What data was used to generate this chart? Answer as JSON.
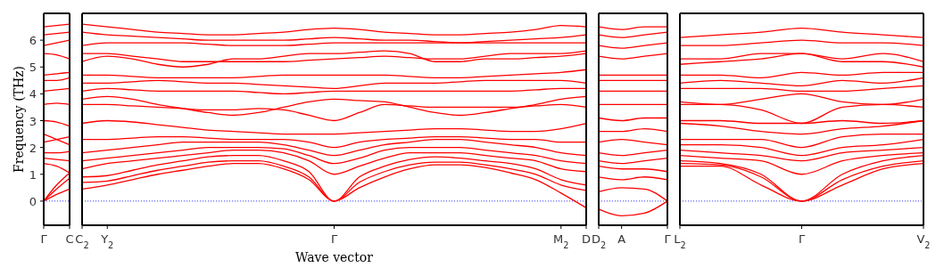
{
  "chart_data": [
    {
      "type": "line",
      "ylabel": "Frequency (THz)",
      "ylim": [
        -0.9,
        7.0
      ],
      "yticks": [
        0,
        1,
        2,
        3,
        4,
        5,
        6
      ],
      "categories": [
        "Γ",
        null,
        "C"
      ],
      "marker": "none",
      "line_style": "solid",
      "ref_lines": [
        {
          "axis": "y",
          "value": 0,
          "color": "#0000ff",
          "line_style": "dotted"
        }
      ],
      "series": [
        {
          "color": "#ff0000",
          "values": [
            0,
            0.25,
            0.45
          ]
        },
        {
          "color": "#ff0000",
          "values": [
            0,
            0.45,
            0.85
          ]
        },
        {
          "color": "#ff0000",
          "values": [
            0,
            0.6,
            1.05
          ]
        },
        {
          "color": "#ff0000",
          "values": [
            1.4,
            1.3,
            1.05
          ]
        },
        {
          "color": "#ff0000",
          "values": [
            1.6,
            1.55,
            1.5
          ]
        },
        {
          "color": "#ff0000",
          "values": [
            1.8,
            1.8,
            1.85
          ]
        },
        {
          "color": "#ff0000",
          "values": [
            2.2,
            2.3,
            2.4
          ]
        },
        {
          "color": "#ff0000",
          "values": [
            2.5,
            2.3,
            2.1
          ]
        },
        {
          "color": "#ff0000",
          "values": [
            3.0,
            2.95,
            2.8
          ]
        },
        {
          "color": "#ff0000",
          "values": [
            3.6,
            3.65,
            3.6
          ]
        },
        {
          "color": "#ff0000",
          "values": [
            4.1,
            4.15,
            4.2
          ]
        },
        {
          "color": "#ff0000",
          "values": [
            4.5,
            4.5,
            4.6
          ]
        },
        {
          "color": "#ff0000",
          "values": [
            4.7,
            4.75,
            4.8
          ]
        },
        {
          "color": "#ff0000",
          "values": [
            5.5,
            5.45,
            5.3
          ]
        },
        {
          "color": "#ff0000",
          "values": [
            5.8,
            5.9,
            6.0
          ]
        },
        {
          "color": "#ff0000",
          "values": [
            6.2,
            6.25,
            6.3
          ]
        },
        {
          "color": "#ff0000",
          "values": [
            6.5,
            6.55,
            6.6
          ]
        }
      ]
    },
    {
      "type": "line",
      "xlabel": "Wave vector",
      "ylim": [
        -0.9,
        7.0
      ],
      "yticks": [
        0,
        1,
        2,
        3,
        4,
        5,
        6
      ],
      "tick_labels": "x",
      "categories": [
        "C$_{2}$",
        "Y$_{2}$",
        null,
        null,
        null,
        null,
        null,
        null,
        null,
        null,
        "Γ",
        null,
        null,
        null,
        null,
        null,
        null,
        null,
        null,
        "M$_{2}$",
        "D"
      ],
      "marker": "none",
      "line_style": "solid",
      "ref_lines": [
        {
          "axis": "y",
          "value": 0,
          "color": "#0000ff",
          "line_style": "dotted"
        }
      ],
      "series": [
        {
          "color": "#ff0000",
          "values": [
            0.45,
            0.6,
            0.8,
            1.0,
            1.15,
            1.3,
            1.4,
            1.4,
            1.2,
            0.8,
            0,
            0.5,
            0.9,
            1.2,
            1.35,
            1.35,
            1.25,
            1.05,
            0.8,
            0.3,
            -0.25
          ]
        },
        {
          "color": "#ff0000",
          "values": [
            0.7,
            0.75,
            0.95,
            1.15,
            1.3,
            1.45,
            1.5,
            1.5,
            1.3,
            0.9,
            0,
            0.7,
            1.1,
            1.35,
            1.45,
            1.45,
            1.35,
            1.2,
            1.0,
            0.6,
            0.4
          ]
        },
        {
          "color": "#ff0000",
          "values": [
            0.9,
            0.95,
            1.15,
            1.35,
            1.5,
            1.65,
            1.7,
            1.7,
            1.5,
            1.1,
            0,
            0.9,
            1.3,
            1.55,
            1.65,
            1.6,
            1.5,
            1.4,
            1.2,
            0.8,
            0.6
          ]
        },
        {
          "color": "#ff0000",
          "values": [
            1.2,
            1.4,
            1.5,
            1.6,
            1.7,
            1.8,
            1.9,
            1.9,
            1.8,
            1.5,
            1.0,
            1.3,
            1.6,
            1.8,
            1.8,
            1.8,
            1.7,
            1.6,
            1.5,
            1.2,
            1.1
          ]
        },
        {
          "color": "#ff0000",
          "values": [
            1.5,
            1.6,
            1.7,
            1.8,
            1.9,
            2.0,
            2.0,
            2.0,
            1.95,
            1.7,
            1.4,
            1.6,
            1.9,
            2.0,
            2.0,
            2.0,
            1.9,
            1.8,
            1.7,
            1.5,
            1.4
          ]
        },
        {
          "color": "#ff0000",
          "values": [
            1.8,
            1.9,
            2.0,
            2.1,
            2.2,
            2.2,
            2.2,
            2.2,
            2.1,
            1.9,
            1.7,
            1.9,
            2.1,
            2.2,
            2.3,
            2.3,
            2.2,
            2.1,
            2.0,
            1.8,
            1.7
          ]
        },
        {
          "color": "#ff0000",
          "values": [
            2.3,
            2.3,
            2.35,
            2.4,
            2.4,
            2.35,
            2.3,
            2.3,
            2.3,
            2.2,
            2.0,
            2.2,
            2.3,
            2.35,
            2.4,
            2.4,
            2.35,
            2.3,
            2.3,
            2.2,
            2.2
          ]
        },
        {
          "color": "#ff0000",
          "values": [
            2.9,
            3.0,
            2.95,
            2.85,
            2.75,
            2.65,
            2.6,
            2.55,
            2.5,
            2.5,
            2.5,
            2.55,
            2.6,
            2.65,
            2.7,
            2.7,
            2.65,
            2.6,
            2.6,
            2.7,
            2.9
          ]
        },
        {
          "color": "#ff0000",
          "values": [
            3.6,
            3.6,
            3.55,
            3.5,
            3.45,
            3.4,
            3.4,
            3.45,
            3.4,
            3.2,
            3.0,
            3.3,
            3.6,
            3.55,
            3.5,
            3.5,
            3.5,
            3.5,
            3.55,
            3.6,
            3.5
          ]
        },
        {
          "color": "#ff0000",
          "values": [
            3.8,
            3.9,
            3.8,
            3.6,
            3.45,
            3.3,
            3.2,
            3.3,
            3.5,
            3.7,
            3.8,
            3.75,
            3.7,
            3.5,
            3.3,
            3.2,
            3.3,
            3.45,
            3.6,
            3.8,
            3.9
          ]
        },
        {
          "color": "#ff0000",
          "values": [
            4.1,
            4.2,
            4.15,
            4.1,
            4.1,
            4.1,
            4.1,
            4.05,
            4.0,
            4.05,
            4.1,
            4.1,
            4.1,
            4.1,
            4.1,
            4.1,
            4.1,
            4.1,
            4.15,
            4.2,
            4.2
          ]
        },
        {
          "color": "#ff0000",
          "values": [
            4.4,
            4.4,
            4.45,
            4.5,
            4.45,
            4.4,
            4.4,
            4.35,
            4.3,
            4.25,
            4.2,
            4.3,
            4.4,
            4.4,
            4.4,
            4.45,
            4.5,
            4.5,
            4.5,
            4.5,
            4.4
          ]
        },
        {
          "color": "#ff0000",
          "values": [
            4.7,
            4.7,
            4.65,
            4.6,
            4.6,
            4.6,
            4.6,
            4.65,
            4.7,
            4.7,
            4.7,
            4.7,
            4.7,
            4.65,
            4.6,
            4.6,
            4.65,
            4.7,
            4.75,
            4.8,
            4.9
          ]
        },
        {
          "color": "#ff0000",
          "values": [
            5.2,
            5.4,
            5.3,
            5.1,
            5.0,
            5.1,
            5.3,
            5.3,
            5.4,
            5.5,
            5.5,
            5.55,
            5.6,
            5.5,
            5.2,
            5.2,
            5.3,
            5.3,
            5.35,
            5.4,
            5.5
          ]
        },
        {
          "color": "#ff0000",
          "values": [
            5.5,
            5.5,
            5.4,
            5.3,
            5.2,
            5.2,
            5.2,
            5.2,
            5.2,
            5.25,
            5.3,
            5.35,
            5.4,
            5.35,
            5.3,
            5.3,
            5.4,
            5.5,
            5.5,
            5.5,
            5.6
          ]
        },
        {
          "color": "#ff0000",
          "values": [
            5.8,
            5.9,
            5.9,
            5.9,
            5.9,
            5.85,
            5.8,
            5.8,
            5.8,
            5.85,
            5.9,
            5.9,
            5.9,
            5.9,
            5.9,
            5.9,
            5.9,
            5.9,
            5.9,
            5.9,
            5.9
          ]
        },
        {
          "color": "#ff0000",
          "values": [
            6.3,
            6.2,
            6.15,
            6.1,
            6.05,
            6.0,
            6.0,
            6.0,
            6.0,
            6.05,
            6.1,
            6.05,
            6.0,
            6.0,
            5.95,
            5.9,
            5.95,
            6.0,
            6.05,
            6.1,
            6.2
          ]
        },
        {
          "color": "#ff0000",
          "values": [
            6.6,
            6.5,
            6.4,
            6.3,
            6.25,
            6.2,
            6.2,
            6.25,
            6.3,
            6.4,
            6.45,
            6.4,
            6.3,
            6.25,
            6.2,
            6.2,
            6.25,
            6.3,
            6.4,
            6.55,
            6.5
          ]
        }
      ]
    },
    {
      "type": "line",
      "ylim": [
        -0.9,
        7.0
      ],
      "yticks": [
        0,
        1,
        2,
        3,
        4,
        5,
        6
      ],
      "tick_labels": "x",
      "categories": [
        "D$_{2}$",
        "A",
        null,
        "Γ"
      ],
      "marker": "none",
      "line_style": "solid",
      "ref_lines": [
        {
          "axis": "y",
          "value": 0,
          "color": "#0000ff",
          "line_style": "dotted"
        }
      ],
      "series": [
        {
          "color": "#ff0000",
          "values": [
            -0.3,
            -0.55,
            -0.45,
            0
          ]
        },
        {
          "color": "#ff0000",
          "values": [
            0.35,
            0.5,
            0.45,
            0
          ]
        },
        {
          "color": "#ff0000",
          "values": [
            0.9,
            0.8,
            0.9,
            0.8
          ]
        },
        {
          "color": "#ff0000",
          "values": [
            1.3,
            1.2,
            1.2,
            1.1
          ]
        },
        {
          "color": "#ff0000",
          "values": [
            1.5,
            1.4,
            1.5,
            1.6
          ]
        },
        {
          "color": "#ff0000",
          "values": [
            1.8,
            1.7,
            1.8,
            1.9
          ]
        },
        {
          "color": "#ff0000",
          "values": [
            2.2,
            2.3,
            2.2,
            2.1
          ]
        },
        {
          "color": "#ff0000",
          "values": [
            2.6,
            2.6,
            2.7,
            2.6
          ]
        },
        {
          "color": "#ff0000",
          "values": [
            3.1,
            3.0,
            3.1,
            3.1
          ]
        },
        {
          "color": "#ff0000",
          "values": [
            3.6,
            3.6,
            3.6,
            3.6
          ]
        },
        {
          "color": "#ff0000",
          "values": [
            4.1,
            4.1,
            4.1,
            4.1
          ]
        },
        {
          "color": "#ff0000",
          "values": [
            4.5,
            4.5,
            4.5,
            4.5
          ]
        },
        {
          "color": "#ff0000",
          "values": [
            4.7,
            4.7,
            4.7,
            4.7
          ]
        },
        {
          "color": "#ff0000",
          "values": [
            5.4,
            5.3,
            5.4,
            5.5
          ]
        },
        {
          "color": "#ff0000",
          "values": [
            5.8,
            5.7,
            5.8,
            5.9
          ]
        },
        {
          "color": "#ff0000",
          "values": [
            6.2,
            6.1,
            6.2,
            6.3
          ]
        },
        {
          "color": "#ff0000",
          "values": [
            6.5,
            6.4,
            6.5,
            6.5
          ]
        }
      ]
    },
    {
      "type": "line",
      "ylim": [
        -0.9,
        7.0
      ],
      "yticks": [
        0,
        1,
        2,
        3,
        4,
        5,
        6
      ],
      "tick_labels": "x",
      "categories": [
        "L$_{2}$",
        null,
        null,
        "Γ",
        null,
        null,
        "V$_{2}$"
      ],
      "marker": "none",
      "line_style": "solid",
      "ref_lines": [
        {
          "axis": "y",
          "value": 0,
          "color": "#0000ff",
          "line_style": "dotted"
        }
      ],
      "series": [
        {
          "color": "#ff0000",
          "values": [
            1.3,
            1.3,
            0.6,
            0,
            0.6,
            1.2,
            1.4
          ]
        },
        {
          "color": "#ff0000",
          "values": [
            1.4,
            1.35,
            0.9,
            0,
            0.8,
            1.3,
            1.5
          ]
        },
        {
          "color": "#ff0000",
          "values": [
            1.5,
            1.4,
            1.0,
            0,
            1.0,
            1.5,
            1.7
          ]
        },
        {
          "color": "#ff0000",
          "values": [
            1.7,
            1.6,
            1.5,
            1.0,
            1.5,
            1.7,
            1.8
          ]
        },
        {
          "color": "#ff0000",
          "values": [
            1.9,
            1.8,
            1.7,
            1.5,
            1.8,
            1.9,
            2.0
          ]
        },
        {
          "color": "#ff0000",
          "values": [
            2.1,
            2.1,
            2.0,
            1.7,
            2.0,
            2.1,
            2.3
          ]
        },
        {
          "color": "#ff0000",
          "values": [
            2.3,
            2.3,
            2.3,
            2.0,
            2.4,
            2.5,
            2.5
          ]
        },
        {
          "color": "#ff0000",
          "values": [
            2.9,
            2.8,
            2.6,
            2.5,
            2.7,
            2.8,
            3.0
          ]
        },
        {
          "color": "#ff0000",
          "values": [
            3.0,
            3.0,
            2.9,
            2.9,
            3.0,
            2.9,
            3.0
          ]
        },
        {
          "color": "#ff0000",
          "values": [
            3.6,
            3.6,
            3.4,
            2.9,
            3.5,
            3.6,
            3.5
          ]
        },
        {
          "color": "#ff0000",
          "values": [
            3.7,
            3.6,
            3.8,
            4.0,
            3.7,
            3.6,
            3.8
          ]
        },
        {
          "color": "#ff0000",
          "values": [
            4.2,
            4.2,
            4.2,
            4.1,
            4.1,
            4.2,
            4.3
          ]
        },
        {
          "color": "#ff0000",
          "values": [
            4.4,
            4.5,
            4.4,
            4.3,
            4.5,
            4.4,
            4.6
          ]
        },
        {
          "color": "#ff0000",
          "values": [
            4.7,
            4.7,
            4.6,
            4.8,
            4.7,
            4.8,
            4.8
          ]
        },
        {
          "color": "#ff0000",
          "values": [
            5.1,
            5.2,
            5.3,
            5.5,
            5.3,
            5.5,
            5.2
          ]
        },
        {
          "color": "#ff0000",
          "values": [
            5.3,
            5.3,
            5.5,
            5.5,
            5.2,
            5.2,
            5.0
          ]
        },
        {
          "color": "#ff0000",
          "values": [
            5.8,
            5.8,
            5.9,
            6.0,
            5.9,
            5.9,
            5.8
          ]
        },
        {
          "color": "#ff0000",
          "values": [
            6.1,
            6.2,
            6.3,
            6.45,
            6.3,
            6.2,
            6.1
          ]
        }
      ]
    }
  ]
}
